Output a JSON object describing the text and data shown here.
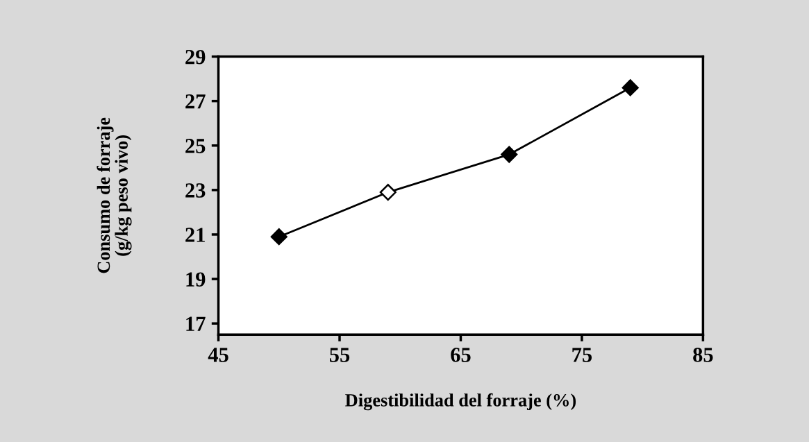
{
  "chart_data": {
    "type": "line",
    "xlabel": "Digestibilidad del forraje (%)",
    "ylabel": "Consumo de forraje\n(g/kg peso vivo)",
    "x": [
      50,
      59,
      69,
      79
    ],
    "series": [
      {
        "color": "#000000",
        "colors": [
          "#000000",
          "#ffffff",
          "#000000",
          "#000000"
        ],
        "values": [
          20.9,
          22.9,
          24.6,
          27.6
        ]
      }
    ],
    "xlim": [
      45,
      85
    ],
    "xticks": [
      45,
      55,
      65,
      75,
      85
    ],
    "ylim": [
      16.5,
      29
    ],
    "yticks": [
      17,
      19,
      21,
      23,
      25,
      27,
      29
    ],
    "marker": "diamond",
    "line_style": "solid",
    "grid": false
  }
}
